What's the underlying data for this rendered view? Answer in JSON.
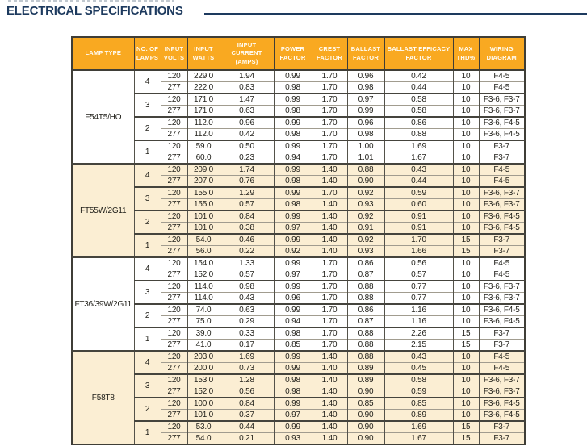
{
  "page": {
    "title": "ELECTRICAL SPECIFICATIONS"
  },
  "colors": {
    "title_navy": "#1d3a5e",
    "header_bg": "#f9a921",
    "header_text": "#fffdf6",
    "tint_row": "#fbeed3",
    "border_dark": "#3f3e37",
    "border_light": "#a19c8f",
    "body_text": "#23221c"
  },
  "table": {
    "columns": [
      "LAMP TYPE",
      "NO. OF\nLAMPS",
      "INPUT\nVOLTS",
      "INPUT\nWATTS",
      "INPUT\nCURRENT\n(AMPS)",
      "POWER\nFACTOR",
      "CREST\nFACTOR",
      "BALLAST\nFACTOR",
      "BALLAST EFFICACY\nFACTOR",
      "MAX\nTHD%",
      "WIRING\nDIAGRAM"
    ],
    "sections": [
      {
        "lamp_type": "F54T5/HO",
        "tinted": false,
        "groups": [
          {
            "lamps": "4",
            "rows": [
              [
                "120",
                "229.0",
                "1.94",
                "0.99",
                "1.70",
                "0.96",
                "0.42",
                "10",
                "F4-5"
              ],
              [
                "277",
                "222.0",
                "0.83",
                "0.98",
                "1.70",
                "0.98",
                "0.44",
                "10",
                "F4-5"
              ]
            ]
          },
          {
            "lamps": "3",
            "rows": [
              [
                "120",
                "171.0",
                "1.47",
                "0.99",
                "1.70",
                "0.97",
                "0.58",
                "10",
                "F3-6, F3-7"
              ],
              [
                "277",
                "171.0",
                "0.63",
                "0.98",
                "1.70",
                "0.99",
                "0.58",
                "10",
                "F3-6, F3-7"
              ]
            ]
          },
          {
            "lamps": "2",
            "rows": [
              [
                "120",
                "112.0",
                "0.96",
                "0.99",
                "1.70",
                "0.96",
                "0.86",
                "10",
                "F3-6, F4-5"
              ],
              [
                "277",
                "112.0",
                "0.42",
                "0.98",
                "1.70",
                "0.98",
                "0.88",
                "10",
                "F3-6, F4-5"
              ]
            ]
          },
          {
            "lamps": "1",
            "rows": [
              [
                "120",
                "59.0",
                "0.50",
                "0.99",
                "1.70",
                "1.00",
                "1.69",
                "10",
                "F3-7"
              ],
              [
                "277",
                "60.0",
                "0.23",
                "0.94",
                "1.70",
                "1.01",
                "1.67",
                "10",
                "F3-7"
              ]
            ]
          }
        ]
      },
      {
        "lamp_type": "FT55W/2G11",
        "tinted": true,
        "groups": [
          {
            "lamps": "4",
            "rows": [
              [
                "120",
                "209.0",
                "1.74",
                "0.99",
                "1.40",
                "0.88",
                "0.43",
                "10",
                "F4-5"
              ],
              [
                "277",
                "207.0",
                "0.76",
                "0.98",
                "1.40",
                "0.90",
                "0.44",
                "10",
                "F4-5"
              ]
            ]
          },
          {
            "lamps": "3",
            "rows": [
              [
                "120",
                "155.0",
                "1.29",
                "0.99",
                "1.70",
                "0.92",
                "0.59",
                "10",
                "F3-6, F3-7"
              ],
              [
                "277",
                "155.0",
                "0.57",
                "0.98",
                "1.40",
                "0.93",
                "0.60",
                "10",
                "F3-6, F3-7"
              ]
            ]
          },
          {
            "lamps": "2",
            "rows": [
              [
                "120",
                "101.0",
                "0.84",
                "0.99",
                "1.40",
                "0.92",
                "0.91",
                "10",
                "F3-6, F4-5"
              ],
              [
                "277",
                "101.0",
                "0.38",
                "0.97",
                "1.40",
                "0.91",
                "0.91",
                "10",
                "F3-6, F4-5"
              ]
            ]
          },
          {
            "lamps": "1",
            "rows": [
              [
                "120",
                "54.0",
                "0.46",
                "0.99",
                "1.40",
                "0.92",
                "1.70",
                "15",
                "F3-7"
              ],
              [
                "277",
                "56.0",
                "0.22",
                "0.92",
                "1.40",
                "0.93",
                "1.66",
                "15",
                "F3-7"
              ]
            ]
          }
        ]
      },
      {
        "lamp_type": "FT36/39W/2G11",
        "tinted": false,
        "groups": [
          {
            "lamps": "4",
            "rows": [
              [
                "120",
                "154.0",
                "1.33",
                "0.99",
                "1.70",
                "0.86",
                "0.56",
                "10",
                "F4-5"
              ],
              [
                "277",
                "152.0",
                "0.57",
                "0.97",
                "1.70",
                "0.87",
                "0.57",
                "10",
                "F4-5"
              ]
            ]
          },
          {
            "lamps": "3",
            "rows": [
              [
                "120",
                "114.0",
                "0.98",
                "0.99",
                "1.70",
                "0.88",
                "0.77",
                "10",
                "F3-6, F3-7"
              ],
              [
                "277",
                "114.0",
                "0.43",
                "0.96",
                "1.70",
                "0.88",
                "0.77",
                "10",
                "F3-6, F3-7"
              ]
            ]
          },
          {
            "lamps": "2",
            "rows": [
              [
                "120",
                "74.0",
                "0.63",
                "0.99",
                "1.70",
                "0.86",
                "1.16",
                "10",
                "F3-6, F4-5"
              ],
              [
                "277",
                "75.0",
                "0.29",
                "0.94",
                "1.70",
                "0.87",
                "1.16",
                "10",
                "F3-6, F4-5"
              ]
            ]
          },
          {
            "lamps": "1",
            "rows": [
              [
                "120",
                "39.0",
                "0.33",
                "0.98",
                "1.70",
                "0.88",
                "2.26",
                "15",
                "F3-7"
              ],
              [
                "277",
                "41.0",
                "0.17",
                "0.85",
                "1.70",
                "0.88",
                "2.15",
                "15",
                "F3-7"
              ]
            ]
          }
        ]
      },
      {
        "lamp_type": "F58T8",
        "tinted": true,
        "groups": [
          {
            "lamps": "4",
            "rows": [
              [
                "120",
                "203.0",
                "1.69",
                "0.99",
                "1.40",
                "0.88",
                "0.43",
                "10",
                "F4-5"
              ],
              [
                "277",
                "200.0",
                "0.73",
                "0.99",
                "1.40",
                "0.89",
                "0.45",
                "10",
                "F4-5"
              ]
            ]
          },
          {
            "lamps": "3",
            "rows": [
              [
                "120",
                "153.0",
                "1.28",
                "0.98",
                "1.40",
                "0.89",
                "0.58",
                "10",
                "F3-6, F3-7"
              ],
              [
                "277",
                "152.0",
                "0.56",
                "0.98",
                "1.40",
                "0.90",
                "0.59",
                "10",
                "F3-6, F3-7"
              ]
            ]
          },
          {
            "lamps": "2",
            "rows": [
              [
                "120",
                "100.0",
                "0.84",
                "0.99",
                "1.40",
                "0.85",
                "0.85",
                "10",
                "F3-6, F4-5"
              ],
              [
                "277",
                "101.0",
                "0.37",
                "0.97",
                "1.40",
                "0.90",
                "0.89",
                "10",
                "F3-6, F4-5"
              ]
            ]
          },
          {
            "lamps": "1",
            "rows": [
              [
                "120",
                "53.0",
                "0.44",
                "0.99",
                "1.40",
                "0.90",
                "1.69",
                "15",
                "F3-7"
              ],
              [
                "277",
                "54.0",
                "0.21",
                "0.93",
                "1.40",
                "0.90",
                "1.67",
                "15",
                "F3-7"
              ]
            ]
          }
        ]
      }
    ]
  }
}
